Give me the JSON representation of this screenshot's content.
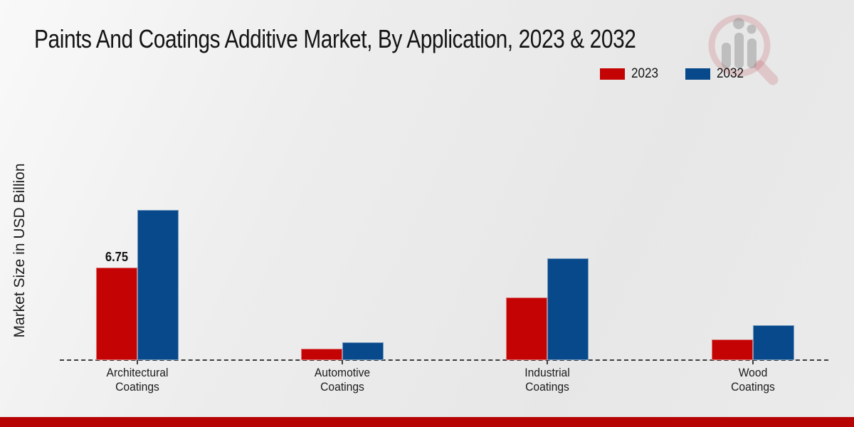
{
  "title": "Paints And Coatings Additive Market, By Application, 2023 & 2032",
  "y_axis_label": "Market Size in USD Billion",
  "colors": {
    "bar_2023": "#c40404",
    "bar_2032": "#07498a",
    "footer_bar": "#b50403",
    "background": "#e9e9e9",
    "baseline": "#3d3d3d"
  },
  "watermark": {
    "icon": "magnifier-bar-chart-logo"
  },
  "chart_data": {
    "type": "bar",
    "title": "Paints And Coatings Additive Market, By Application, 2023 & 2032",
    "xlabel": "",
    "ylabel": "Market Size in USD Billion",
    "categories": [
      "Architectural Coatings",
      "Automotive Coatings",
      "Industrial Coatings",
      "Wood Coatings"
    ],
    "series": [
      {
        "name": "2023",
        "color": "#c40404",
        "values": [
          6.75,
          0.85,
          4.55,
          1.5
        ]
      },
      {
        "name": "2032",
        "color": "#07498a",
        "values": [
          10.9,
          1.3,
          7.4,
          2.55
        ]
      }
    ],
    "annotations": [
      {
        "series": "2023",
        "category": "Architectural Coatings",
        "text": "6.75"
      }
    ],
    "ylim": [
      0,
      12
    ],
    "grid": false,
    "baseline_style": "dashed",
    "legend_position": "top-right"
  }
}
